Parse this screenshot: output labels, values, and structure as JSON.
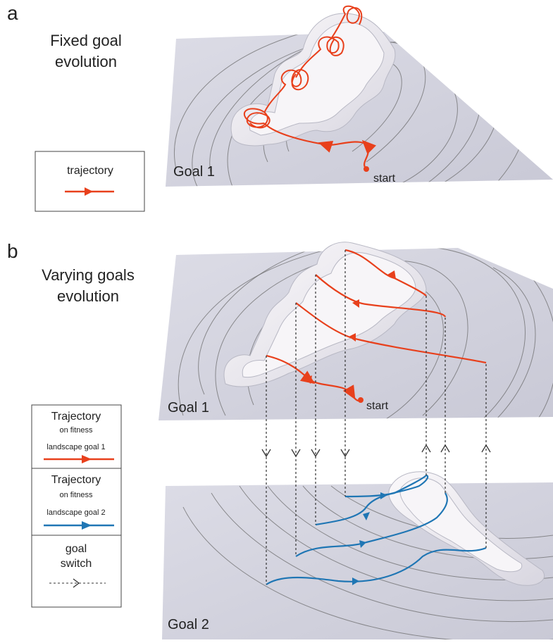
{
  "panel_a": {
    "label": "a",
    "title_lines": [
      "Fixed goal",
      "evolution"
    ],
    "legend": {
      "label": "trajectory"
    },
    "plane_label": "Goal 1",
    "start_label": "start"
  },
  "panel_b": {
    "label": "b",
    "title_lines": [
      "Varying goals",
      "evolution"
    ],
    "legend": {
      "goal1": [
        "Trajectory",
        "on fitness",
        "landscape goal 1"
      ],
      "goal2": [
        "Trajectory",
        "on fitness",
        "landscape goal 2"
      ],
      "switch": [
        "goal",
        "switch"
      ]
    },
    "top_plane_label": "Goal 1",
    "start_label": "start",
    "bottom_plane_label": "Goal 2"
  }
}
